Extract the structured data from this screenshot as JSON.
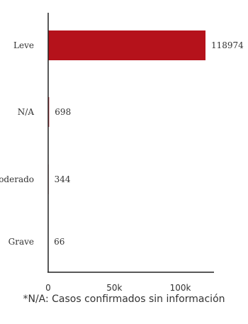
{
  "chart_data": {
    "type": "bar",
    "orientation": "horizontal",
    "categories": [
      "Leve",
      "N/A",
      "Moderado",
      "Grave"
    ],
    "values": [
      118974,
      698,
      344,
      66
    ],
    "xticks": [
      {
        "value": 0,
        "label": "0"
      },
      {
        "value": 50000,
        "label": "50k"
      },
      {
        "value": 100000,
        "label": "100k"
      }
    ],
    "xlim": [
      0,
      125000
    ],
    "title": "",
    "xlabel": "",
    "ylabel": "",
    "bar_color": "#b5121b",
    "grid": false,
    "data_labels": true
  },
  "footnote": "*N/A: Casos confirmados sin información"
}
